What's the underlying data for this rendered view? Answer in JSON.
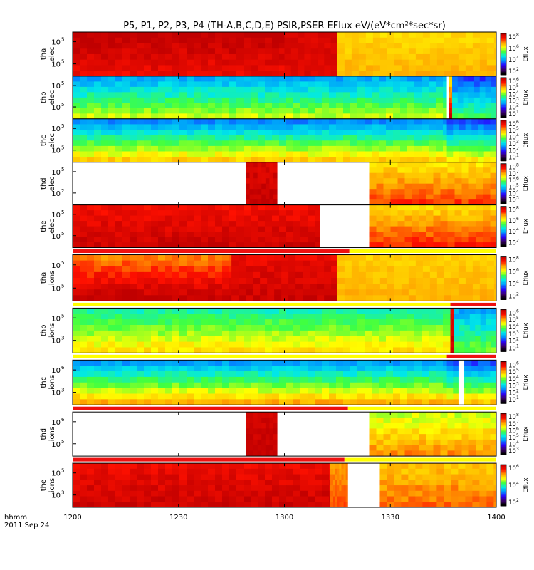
{
  "title": "P5, P1, P2, P3, P4 (TH-A,B,C,D,E) PSIR,PSER EFlux eV/(eV*cm²*sec*sr)",
  "time_axis": {
    "label": "hhmm",
    "date": "2011 Sep 24",
    "ticks": [
      "1200",
      "1230",
      "1300",
      "1330",
      "1400"
    ]
  },
  "colorbar_label": "Eflux",
  "chart_data": {
    "type": "heatmap",
    "x_range": [
      "12:00",
      "14:00"
    ],
    "colormap": [
      "#000000",
      "#3a006a",
      "#2a00ff",
      "#0090ff",
      "#00e8e8",
      "#40ff40",
      "#ffff00",
      "#ffa000",
      "#ff1000",
      "#c00000"
    ],
    "panels": [
      {
        "name": "tha_elec",
        "probe": "tha",
        "species": "elec",
        "ylabel_top": "tha",
        "ylabel_bottom": "elec",
        "y_ticks": [
          {
            "base": "10",
            "exp": "5"
          },
          {
            "base": "10",
            "exp": "5"
          }
        ],
        "cbar_ticks": [
          {
            "base": "10",
            "exp": "8"
          },
          {
            "base": "10",
            "exp": "6"
          },
          {
            "base": "10",
            "exp": "4"
          },
          {
            "base": "10",
            "exp": "2"
          }
        ],
        "gaps": [],
        "segments": [
          {
            "x0": 0,
            "x1": 60,
            "top": 9.0,
            "bottom": 8.3,
            "var": 0.3
          },
          {
            "x0": 60,
            "x1": 75,
            "top": 8.6,
            "bottom": 8.5,
            "var": 0.2
          },
          {
            "x0": 75,
            "x1": 120,
            "top": 6.4,
            "bottom": 6.8,
            "var": 0.2
          }
        ]
      },
      {
        "name": "thb_elec",
        "probe": "thb",
        "species": "elec",
        "ylabel_top": "thb",
        "ylabel_bottom": "elec",
        "y_ticks": [
          {
            "base": "10",
            "exp": "5"
          },
          {
            "base": "10",
            "exp": "5"
          }
        ],
        "cbar_ticks": [
          {
            "base": "10",
            "exp": "6"
          },
          {
            "base": "10",
            "exp": "5"
          },
          {
            "base": "10",
            "exp": "4"
          },
          {
            "base": "10",
            "exp": "3"
          },
          {
            "base": "10",
            "exp": "2"
          },
          {
            "base": "10",
            "exp": "1"
          }
        ],
        "gaps": [
          {
            "x0": 106.0,
            "x1": 106.6
          }
        ],
        "segments": [
          {
            "x0": 0,
            "x1": 106,
            "top": 3.3,
            "bottom": 5.7,
            "var": 0.35
          },
          {
            "x0": 106.6,
            "x1": 107.5,
            "top": 6.2,
            "bottom": 8.6,
            "var": 0.4
          },
          {
            "x0": 107.5,
            "x1": 120,
            "top": 2.5,
            "bottom": 4.8,
            "var": 0.35
          }
        ]
      },
      {
        "name": "thc_elec",
        "probe": "thc",
        "species": "elec",
        "ylabel_top": "thc",
        "ylabel_bottom": "elec",
        "y_ticks": [
          {
            "base": "10",
            "exp": "5"
          },
          {
            "base": "10",
            "exp": "5"
          }
        ],
        "cbar_ticks": [
          {
            "base": "10",
            "exp": "6"
          },
          {
            "base": "10",
            "exp": "5"
          },
          {
            "base": "10",
            "exp": "4"
          },
          {
            "base": "10",
            "exp": "3"
          },
          {
            "base": "10",
            "exp": "2"
          },
          {
            "base": "10",
            "exp": "1"
          }
        ],
        "gaps": [],
        "segments": [
          {
            "x0": 0,
            "x1": 106,
            "top": 3.0,
            "bottom": 6.5,
            "var": 0.3
          },
          {
            "x0": 106,
            "x1": 120,
            "top": 2.4,
            "bottom": 6.2,
            "var": 0.3
          }
        ]
      },
      {
        "name": "thd_elec",
        "probe": "thd",
        "species": "elec",
        "ylabel_top": "thd",
        "ylabel_bottom": "elec",
        "y_ticks": [
          {
            "base": "10",
            "exp": "5"
          },
          {
            "base": "10",
            "exp": "2"
          }
        ],
        "cbar_ticks": [
          {
            "base": "10",
            "exp": "8"
          },
          {
            "base": "10",
            "exp": "7"
          },
          {
            "base": "10",
            "exp": "6"
          },
          {
            "base": "10",
            "exp": "5"
          },
          {
            "base": "10",
            "exp": "4"
          },
          {
            "base": "10",
            "exp": "3"
          }
        ],
        "gaps": [
          {
            "x0": 0,
            "x1": 49
          },
          {
            "x0": 58,
            "x1": 84
          }
        ],
        "segments": [
          {
            "x0": 49,
            "x1": 58,
            "top": 8.6,
            "bottom": 8.9,
            "var": 0.3
          },
          {
            "x0": 84,
            "x1": 120,
            "top": 6.3,
            "bottom": 7.7,
            "var": 0.3
          }
        ]
      },
      {
        "name": "the_elec",
        "probe": "the",
        "species": "elec",
        "ylabel_top": "the",
        "ylabel_bottom": "elec",
        "y_ticks": [
          {
            "base": "10",
            "exp": "5"
          },
          {
            "base": "10",
            "exp": "5"
          }
        ],
        "cbar_ticks": [
          {
            "base": "10",
            "exp": "8"
          },
          {
            "base": "10",
            "exp": "6"
          },
          {
            "base": "10",
            "exp": "4"
          },
          {
            "base": "10",
            "exp": "2"
          }
        ],
        "gaps": [
          {
            "x0": 70,
            "x1": 84
          }
        ],
        "segments": [
          {
            "x0": 0,
            "x1": 70,
            "top": 8.2,
            "bottom": 8.8,
            "var": 0.3
          },
          {
            "x0": 84,
            "x1": 120,
            "top": 6.4,
            "bottom": 7.9,
            "var": 0.3
          }
        ]
      },
      {
        "name": "tha_ions",
        "probe": "tha",
        "species": "ions",
        "ylabel_top": "tha",
        "ylabel_bottom": "ions",
        "y_ticks": [
          {
            "base": "10",
            "exp": "5"
          },
          {
            "base": "10",
            "exp": "5"
          }
        ],
        "cbar_ticks": [
          {
            "base": "10",
            "exp": "8"
          },
          {
            "base": "10",
            "exp": "6"
          },
          {
            "base": "10",
            "exp": "4"
          },
          {
            "base": "10",
            "exp": "2"
          }
        ],
        "gaps": [],
        "segments": [
          {
            "x0": 0,
            "x1": 45,
            "top": 7.2,
            "bottom": 9.0,
            "var": 0.3
          },
          {
            "x0": 45,
            "x1": 75,
            "top": 8.3,
            "bottom": 8.8,
            "var": 0.3
          },
          {
            "x0": 75,
            "x1": 120,
            "top": 6.5,
            "bottom": 6.8,
            "var": 0.2
          }
        ]
      },
      {
        "name": "thb_ions",
        "probe": "thb",
        "species": "ions",
        "ylabel_top": "thb",
        "ylabel_bottom": "ions",
        "y_ticks": [
          {
            "base": "10",
            "exp": "5"
          },
          {
            "base": "10",
            "exp": "3"
          }
        ],
        "cbar_ticks": [
          {
            "base": "10",
            "exp": "6"
          },
          {
            "base": "10",
            "exp": "5"
          },
          {
            "base": "10",
            "exp": "4"
          },
          {
            "base": "10",
            "exp": "3"
          },
          {
            "base": "10",
            "exp": "2"
          },
          {
            "base": "10",
            "exp": "1"
          }
        ],
        "gaps": [],
        "segments": [
          {
            "x0": 0,
            "x1": 107,
            "top": 4.4,
            "bottom": 6.3,
            "var": 0.3
          },
          {
            "x0": 107,
            "x1": 108,
            "top": 8.3,
            "bottom": 9.0,
            "var": 0.3
          },
          {
            "x0": 108,
            "x1": 120,
            "top": 3.3,
            "bottom": 5.2,
            "var": 0.35
          }
        ]
      },
      {
        "name": "thc_ions",
        "probe": "thc",
        "species": "ions",
        "ylabel_top": "thc",
        "ylabel_bottom": "ions",
        "y_ticks": [
          {
            "base": "10",
            "exp": "6"
          },
          {
            "base": "10",
            "exp": "3"
          }
        ],
        "cbar_ticks": [
          {
            "base": "10",
            "exp": "6"
          },
          {
            "base": "10",
            "exp": "5"
          },
          {
            "base": "10",
            "exp": "4"
          },
          {
            "base": "10",
            "exp": "3"
          },
          {
            "base": "10",
            "exp": "2"
          },
          {
            "base": "10",
            "exp": "1"
          }
        ],
        "gaps": [
          {
            "x0": 109.3,
            "x1": 110.8
          }
        ],
        "segments": [
          {
            "x0": 0,
            "x1": 106,
            "top": 3.2,
            "bottom": 6.8,
            "var": 0.3
          },
          {
            "x0": 106,
            "x1": 120,
            "top": 2.5,
            "bottom": 6.6,
            "var": 0.3
          }
        ]
      },
      {
        "name": "thd_ions",
        "probe": "thd",
        "species": "ions",
        "ylabel_top": "thd",
        "ylabel_bottom": "ions",
        "y_ticks": [
          {
            "base": "10",
            "exp": "6"
          },
          {
            "base": "10",
            "exp": "5"
          }
        ],
        "cbar_ticks": [
          {
            "base": "10",
            "exp": "8"
          },
          {
            "base": "10",
            "exp": "7"
          },
          {
            "base": "10",
            "exp": "6"
          },
          {
            "base": "10",
            "exp": "5"
          },
          {
            "base": "10",
            "exp": "4"
          },
          {
            "base": "10",
            "exp": "3"
          }
        ],
        "gaps": [
          {
            "x0": 0,
            "x1": 49
          },
          {
            "x0": 58,
            "x1": 84
          }
        ],
        "segments": [
          {
            "x0": 49,
            "x1": 58,
            "top": 8.7,
            "bottom": 8.9,
            "var": 0.2
          },
          {
            "x0": 84,
            "x1": 120,
            "top": 5.7,
            "bottom": 7.1,
            "var": 0.35
          }
        ]
      },
      {
        "name": "the_ions",
        "probe": "the",
        "species": "ions",
        "ylabel_top": "the",
        "ylabel_bottom": "ions",
        "y_ticks": [
          {
            "base": "10",
            "exp": "5"
          },
          {
            "base": "10",
            "exp": "3"
          }
        ],
        "cbar_ticks": [
          {
            "base": "10",
            "exp": "6"
          },
          {
            "base": "10",
            "exp": "4"
          },
          {
            "base": "10",
            "exp": "2"
          }
        ],
        "gaps": [
          {
            "x0": 78,
            "x1": 87
          }
        ],
        "segments": [
          {
            "x0": 0,
            "x1": 73,
            "top": 8.3,
            "bottom": 8.8,
            "var": 0.3
          },
          {
            "x0": 73,
            "x1": 78,
            "top": 7.0,
            "bottom": 7.6,
            "var": 0.2
          },
          {
            "x0": 87,
            "x1": 120,
            "top": 6.6,
            "bottom": 7.4,
            "var": 0.3
          }
        ]
      }
    ],
    "status_bars": [
      {
        "after_panel": 4,
        "segments": [
          {
            "x0": 0,
            "x1": 78.4,
            "color": "red"
          },
          {
            "x0": 78.4,
            "x1": 120,
            "color": "yellow"
          }
        ]
      },
      {
        "after_panel": 5,
        "segments": [
          {
            "x0": 0,
            "x1": 107,
            "color": "yellow"
          },
          {
            "x0": 107,
            "x1": 120,
            "color": "red"
          }
        ]
      },
      {
        "after_panel": 6,
        "segments": [
          {
            "x0": 0,
            "x1": 106,
            "color": "yellow"
          },
          {
            "x0": 106,
            "x1": 120,
            "color": "red"
          }
        ]
      },
      {
        "after_panel": 7,
        "segments": [
          {
            "x0": 0,
            "x1": 78,
            "color": "red"
          },
          {
            "x0": 78,
            "x1": 120,
            "color": "yellow"
          }
        ]
      },
      {
        "after_panel": 8,
        "segments": [
          {
            "x0": 0,
            "x1": 77,
            "color": "red"
          },
          {
            "x0": 77,
            "x1": 120,
            "color": "yellow"
          }
        ]
      }
    ]
  }
}
